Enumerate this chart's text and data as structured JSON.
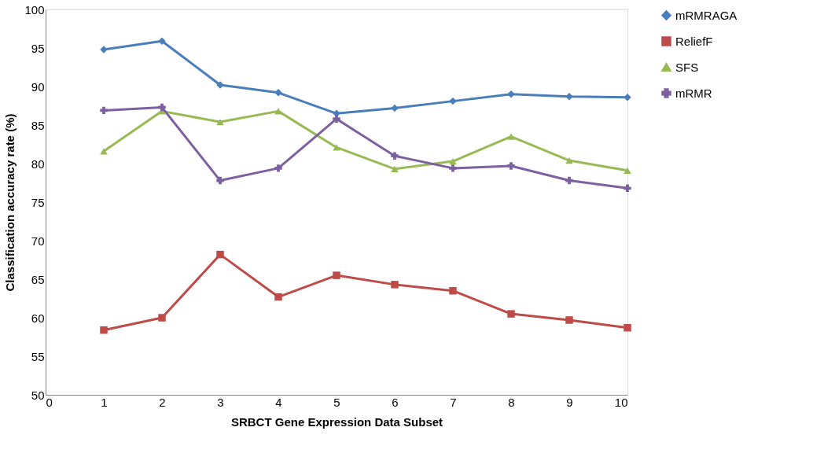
{
  "chart_data": {
    "type": "line",
    "xlabel": "SRBCT Gene Expression Data Subset",
    "ylabel": "Classification accuracy rate (%)",
    "x": [
      1,
      2,
      3,
      4,
      5,
      6,
      7,
      8,
      9,
      10
    ],
    "xlim": [
      0,
      10
    ],
    "xticks": [
      0,
      1,
      2,
      3,
      4,
      5,
      6,
      7,
      8,
      9,
      10
    ],
    "ylim": [
      50,
      100
    ],
    "yticks": [
      50,
      55,
      60,
      65,
      70,
      75,
      80,
      85,
      90,
      95,
      100
    ],
    "grid": false,
    "legend": "right",
    "line_style": "solid",
    "series": [
      {
        "name": "mRMRAGA",
        "color": "#4a7ebb",
        "marker": "diamond",
        "values": [
          94.8,
          95.9,
          90.2,
          89.2,
          86.5,
          87.2,
          88.1,
          89.0,
          88.7,
          88.6
        ]
      },
      {
        "name": "ReliefF",
        "color": "#be4b48",
        "marker": "square",
        "values": [
          58.4,
          60.0,
          68.2,
          62.7,
          65.5,
          64.3,
          63.5,
          60.5,
          59.7,
          58.7
        ]
      },
      {
        "name": "SFS",
        "color": "#98b954",
        "marker": "triangle",
        "values": [
          81.6,
          86.8,
          85.4,
          86.8,
          82.1,
          79.3,
          80.3,
          83.5,
          80.4,
          79.1
        ]
      },
      {
        "name": "mRMR",
        "color": "#7d60a0",
        "marker": "cross",
        "values": [
          86.9,
          87.3,
          77.8,
          79.4,
          85.8,
          81.0,
          79.4,
          79.7,
          77.8,
          76.8
        ]
      }
    ]
  }
}
